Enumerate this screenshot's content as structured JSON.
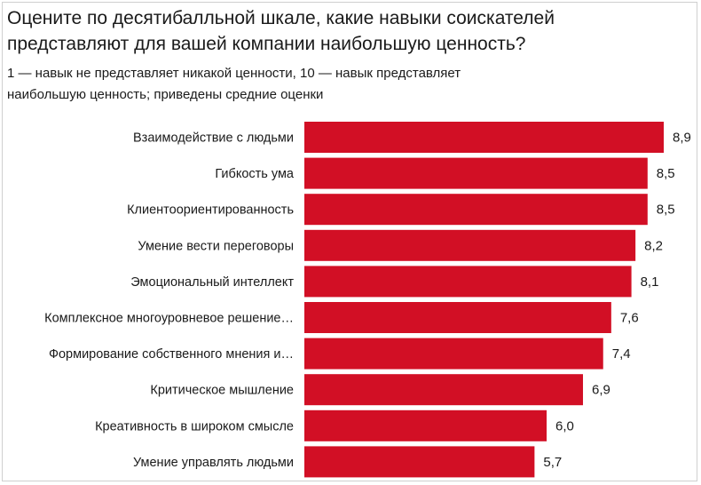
{
  "chart_data": {
    "type": "bar",
    "orientation": "horizontal",
    "title": "Оцените по десятибалльной шкале, какие навыки соискателей представляют для вашей компании наибольшую ценность?",
    "subtitle": "1 — навык не представляет никакой ценности, 10 — навык представляет наибольшую ценность; приведены средние оценки",
    "xlabel": "",
    "ylabel": "",
    "xlim": [
      0,
      8.9
    ],
    "grid": false,
    "legend": "none",
    "bar_color": "#d20f25",
    "categories": [
      "Взаимодействие с людьми",
      "Гибкость ума",
      "Клиентоориентированность",
      "Умение вести переговоры",
      "Эмоциональный интеллект",
      "Комплексное многоуровневое  решение…",
      "Формирование собственного мнения и…",
      "Критическое мышление",
      "Креативность в широком смысле",
      "Умение управлять людьми"
    ],
    "values": [
      8.9,
      8.5,
      8.5,
      8.2,
      8.1,
      7.6,
      7.4,
      6.9,
      6.0,
      5.7
    ],
    "value_labels": [
      "8,9",
      "8,5",
      "8,5",
      "8,2",
      "8,1",
      "7,6",
      "7,4",
      "6,9",
      "6,0",
      "5,7"
    ]
  }
}
